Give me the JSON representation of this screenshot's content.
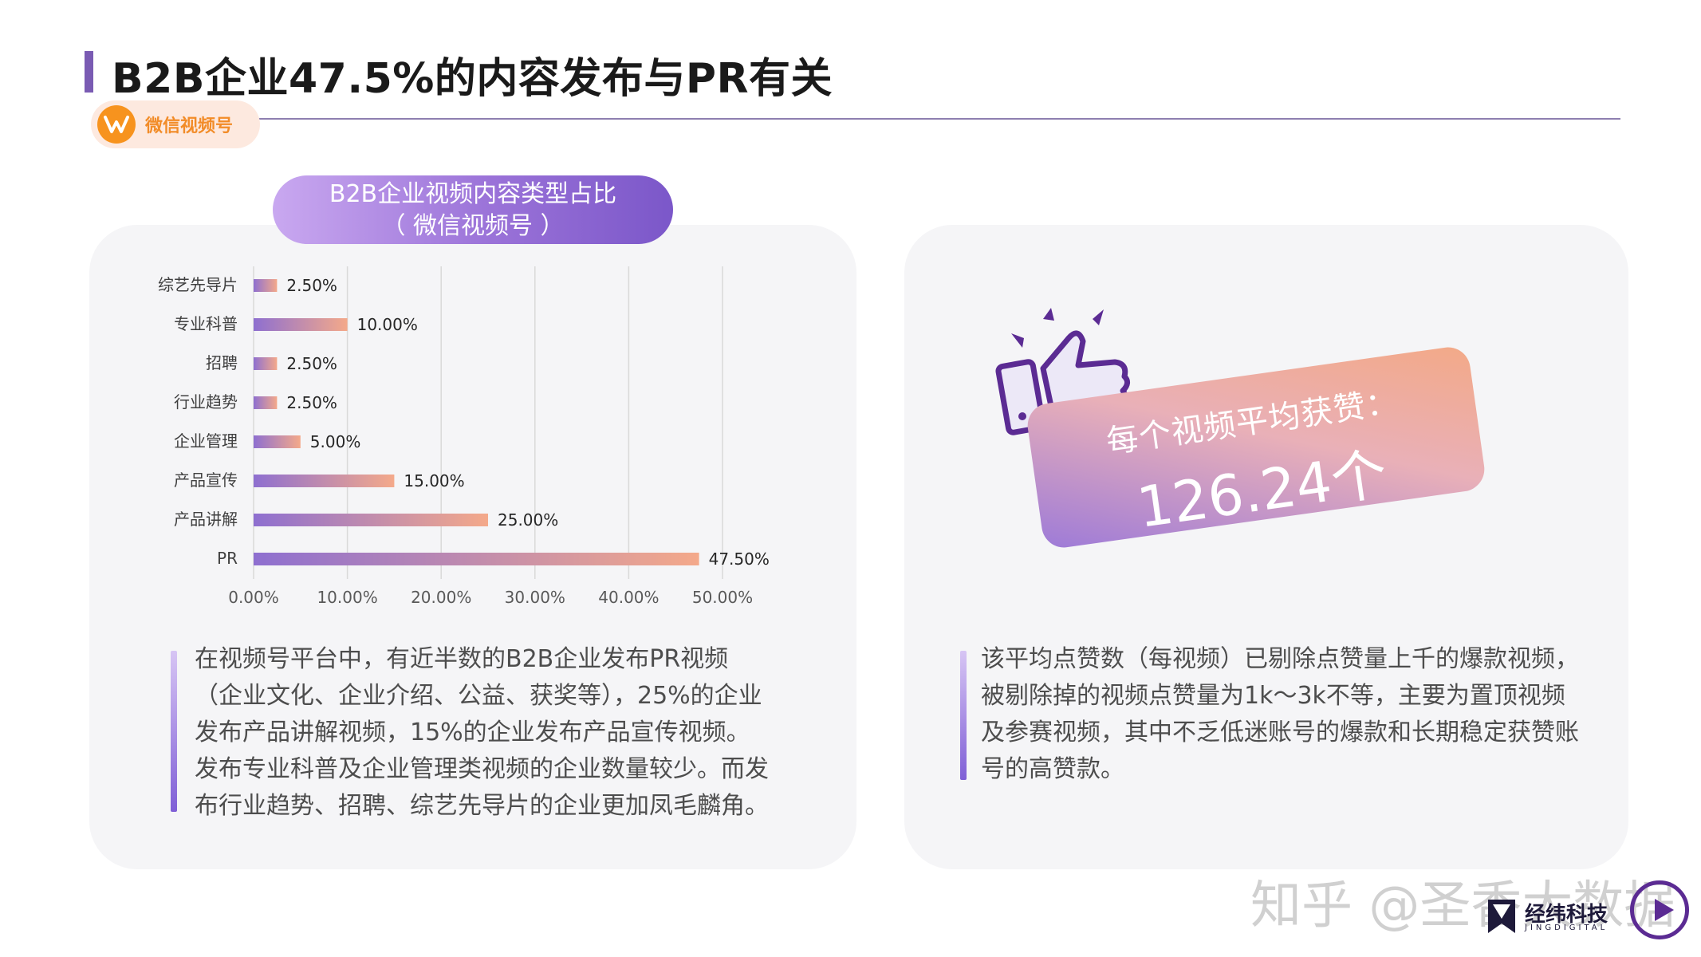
{
  "page": {
    "title": "B2B企业47.5%的内容发布与PR有关",
    "channel_label": "微信视频号"
  },
  "chart_data": {
    "type": "bar",
    "orientation": "horizontal",
    "title": "B2B企业视频内容类型占比",
    "subtitle": "（ 微信视频号 ）",
    "categories": [
      "综艺先导片",
      "专业科普",
      "招聘",
      "行业趋势",
      "企业管理",
      "产品宣传",
      "产品讲解",
      "PR"
    ],
    "values": [
      2.5,
      10.0,
      2.5,
      2.5,
      5.0,
      15.0,
      25.0,
      47.5
    ],
    "value_labels": [
      "2.50%",
      "10.00%",
      "2.50%",
      "2.50%",
      "5.00%",
      "15.00%",
      "25.00%",
      "47.50%"
    ],
    "x_ticks": [
      "0.00%",
      "10.00%",
      "20.00%",
      "30.00%",
      "40.00%",
      "50.00%"
    ],
    "xlim": [
      0,
      50
    ],
    "grid": true,
    "xlabel": "",
    "ylabel": "",
    "colors": {
      "bar_start": "#8e6fd0",
      "bar_end": "#f4a98a"
    }
  },
  "left_description": "在视频号平台中，有近半数的B2B企业发布PR视频（企业文化、企业介绍、公益、获奖等），25%的企业发布产品讲解视频，15%的企业发布产品宣传视频。发布专业科普及企业管理类视频的企业数量较少。而发布行业趋势、招聘、综艺先导片的企业更加凤毛麟角。",
  "stat": {
    "label": "每个视频平均获赞：",
    "value": "126.24个"
  },
  "right_description": "该平均点赞数（每视频）已剔除点赞量上千的爆款视频，被剔除掉的视频点赞量为1k～3k不等，主要为置顶视频及参赛视频，其中不乏低迷账号的爆款和长期稳定获赞账号的高赞款。",
  "icons": {
    "channel": "wechat-channels-icon",
    "thumb": "thumbs-up-icon",
    "play": "play-icon"
  },
  "footer": {
    "watermark": "知乎 @圣香大数据",
    "brand_name": "经纬科技",
    "brand_sub": "JINGDIGITAL"
  }
}
